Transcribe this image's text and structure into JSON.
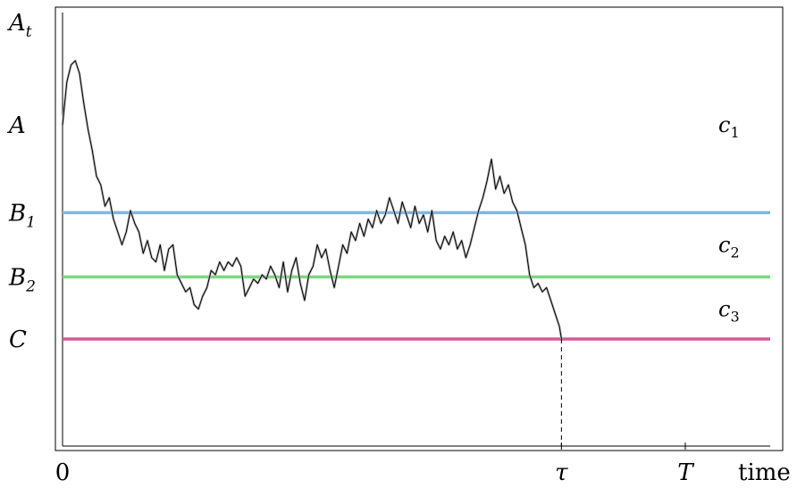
{
  "chart_data": {
    "type": "line",
    "ylabel": "A_t",
    "xlabel": "time",
    "xlim": [
      0,
      1
    ],
    "ylim": [
      0,
      1
    ],
    "x_ticks": [
      {
        "label": "0",
        "x": 0.0
      },
      {
        "label": "τ",
        "x": 0.705
      },
      {
        "label": "T",
        "x": 0.88
      }
    ],
    "levels": [
      {
        "label": "A",
        "y": 0.75,
        "line": false
      },
      {
        "label": "B₁",
        "y": 0.545,
        "line": true,
        "color": "#7fb6e3"
      },
      {
        "label": "B₂",
        "y": 0.395,
        "line": true,
        "color": "#7cd87c"
      },
      {
        "label": "C",
        "y": 0.25,
        "line": true,
        "color": "#d9569c"
      }
    ],
    "region_labels": [
      {
        "name": "c",
        "sub": "1",
        "y": 0.75
      },
      {
        "name": "c",
        "sub": "2",
        "y": 0.47
      },
      {
        "name": "c",
        "sub": "3",
        "y": 0.32
      }
    ],
    "stop_time": 0.705,
    "path": [
      [
        0.0,
        0.75
      ],
      [
        0.006,
        0.85
      ],
      [
        0.012,
        0.89
      ],
      [
        0.018,
        0.9
      ],
      [
        0.024,
        0.87
      ],
      [
        0.03,
        0.8
      ],
      [
        0.036,
        0.74
      ],
      [
        0.042,
        0.69
      ],
      [
        0.048,
        0.63
      ],
      [
        0.054,
        0.61
      ],
      [
        0.06,
        0.56
      ],
      [
        0.066,
        0.58
      ],
      [
        0.072,
        0.53
      ],
      [
        0.078,
        0.5
      ],
      [
        0.084,
        0.47
      ],
      [
        0.09,
        0.5
      ],
      [
        0.096,
        0.55
      ],
      [
        0.102,
        0.52
      ],
      [
        0.108,
        0.5
      ],
      [
        0.114,
        0.45
      ],
      [
        0.12,
        0.48
      ],
      [
        0.126,
        0.44
      ],
      [
        0.132,
        0.43
      ],
      [
        0.138,
        0.47
      ],
      [
        0.144,
        0.41
      ],
      [
        0.15,
        0.46
      ],
      [
        0.156,
        0.47
      ],
      [
        0.162,
        0.4
      ],
      [
        0.168,
        0.38
      ],
      [
        0.174,
        0.36
      ],
      [
        0.18,
        0.37
      ],
      [
        0.186,
        0.33
      ],
      [
        0.192,
        0.32
      ],
      [
        0.198,
        0.35
      ],
      [
        0.204,
        0.37
      ],
      [
        0.21,
        0.41
      ],
      [
        0.216,
        0.4
      ],
      [
        0.222,
        0.43
      ],
      [
        0.228,
        0.41
      ],
      [
        0.234,
        0.43
      ],
      [
        0.24,
        0.42
      ],
      [
        0.246,
        0.44
      ],
      [
        0.252,
        0.42
      ],
      [
        0.258,
        0.35
      ],
      [
        0.264,
        0.37
      ],
      [
        0.27,
        0.39
      ],
      [
        0.276,
        0.38
      ],
      [
        0.282,
        0.4
      ],
      [
        0.288,
        0.39
      ],
      [
        0.294,
        0.42
      ],
      [
        0.3,
        0.4
      ],
      [
        0.306,
        0.37
      ],
      [
        0.312,
        0.43
      ],
      [
        0.318,
        0.36
      ],
      [
        0.324,
        0.41
      ],
      [
        0.33,
        0.44
      ],
      [
        0.336,
        0.38
      ],
      [
        0.342,
        0.34
      ],
      [
        0.348,
        0.4
      ],
      [
        0.354,
        0.42
      ],
      [
        0.36,
        0.47
      ],
      [
        0.366,
        0.44
      ],
      [
        0.372,
        0.46
      ],
      [
        0.378,
        0.41
      ],
      [
        0.384,
        0.37
      ],
      [
        0.39,
        0.42
      ],
      [
        0.396,
        0.47
      ],
      [
        0.402,
        0.45
      ],
      [
        0.408,
        0.5
      ],
      [
        0.414,
        0.48
      ],
      [
        0.42,
        0.52
      ],
      [
        0.426,
        0.49
      ],
      [
        0.432,
        0.53
      ],
      [
        0.438,
        0.51
      ],
      [
        0.444,
        0.55
      ],
      [
        0.45,
        0.52
      ],
      [
        0.456,
        0.54
      ],
      [
        0.462,
        0.58
      ],
      [
        0.468,
        0.55
      ],
      [
        0.474,
        0.52
      ],
      [
        0.48,
        0.57
      ],
      [
        0.486,
        0.54
      ],
      [
        0.492,
        0.51
      ],
      [
        0.498,
        0.56
      ],
      [
        0.504,
        0.52
      ],
      [
        0.51,
        0.54
      ],
      [
        0.516,
        0.5
      ],
      [
        0.522,
        0.55
      ],
      [
        0.528,
        0.48
      ],
      [
        0.534,
        0.46
      ],
      [
        0.54,
        0.49
      ],
      [
        0.546,
        0.47
      ],
      [
        0.552,
        0.5
      ],
      [
        0.558,
        0.46
      ],
      [
        0.564,
        0.48
      ],
      [
        0.57,
        0.44
      ],
      [
        0.576,
        0.47
      ],
      [
        0.582,
        0.51
      ],
      [
        0.588,
        0.55
      ],
      [
        0.594,
        0.58
      ],
      [
        0.6,
        0.62
      ],
      [
        0.606,
        0.67
      ],
      [
        0.612,
        0.6
      ],
      [
        0.618,
        0.63
      ],
      [
        0.624,
        0.59
      ],
      [
        0.63,
        0.61
      ],
      [
        0.636,
        0.57
      ],
      [
        0.642,
        0.55
      ],
      [
        0.648,
        0.51
      ],
      [
        0.654,
        0.47
      ],
      [
        0.66,
        0.4
      ],
      [
        0.666,
        0.37
      ],
      [
        0.672,
        0.38
      ],
      [
        0.678,
        0.36
      ],
      [
        0.684,
        0.37
      ],
      [
        0.69,
        0.34
      ],
      [
        0.696,
        0.31
      ],
      [
        0.702,
        0.28
      ],
      [
        0.705,
        0.25
      ]
    ]
  }
}
